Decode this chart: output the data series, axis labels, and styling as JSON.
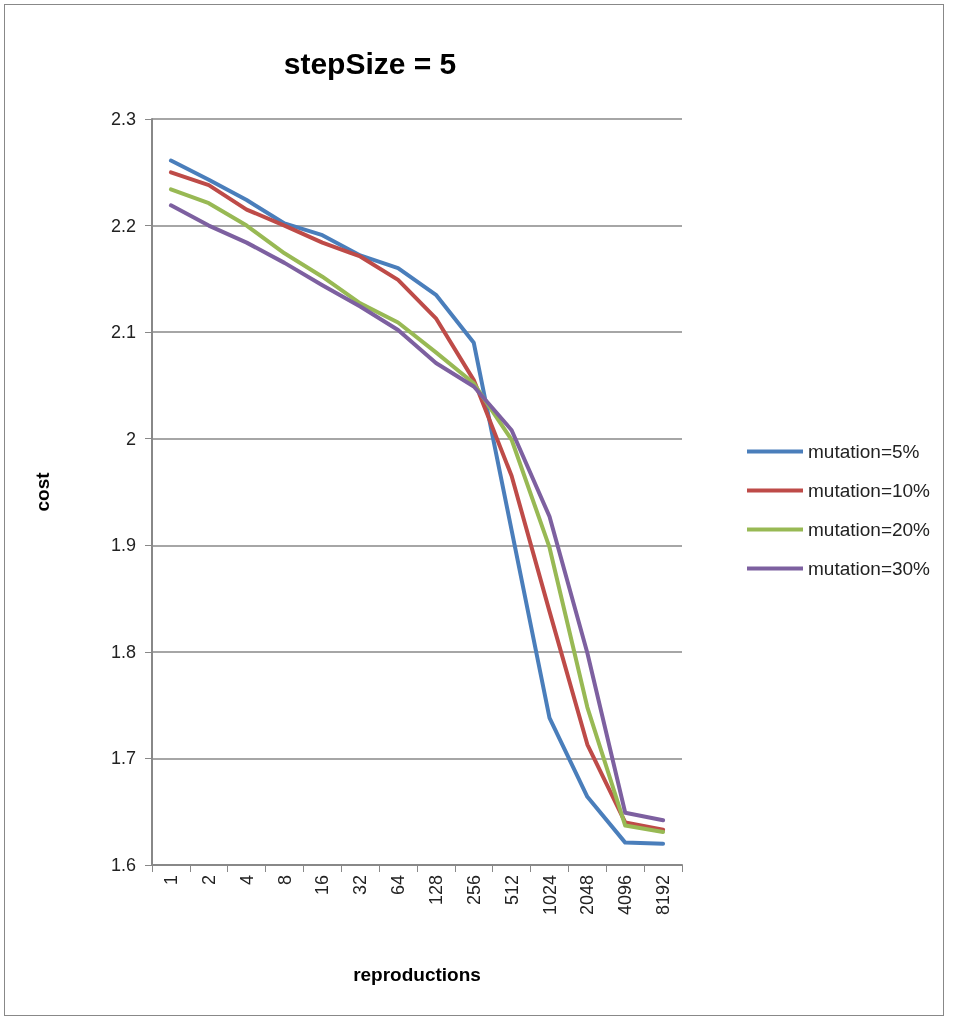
{
  "chart_data": {
    "type": "line",
    "title": "stepSize = 5",
    "xlabel": "reproductions",
    "ylabel": "cost",
    "categories": [
      "1",
      "2",
      "4",
      "8",
      "16",
      "32",
      "64",
      "128",
      "256",
      "512",
      "1024",
      "2048",
      "4096",
      "8192"
    ],
    "ylim": [
      1.6,
      2.3
    ],
    "yticks": [
      1.6,
      1.7,
      1.8,
      1.9,
      2,
      2.1,
      2.2,
      2.3
    ],
    "grid": "y",
    "legend": "right",
    "marker": "none",
    "line_style": "solid",
    "series": [
      {
        "name": "mutation=5%",
        "color": "#4a7ebb",
        "values": [
          2.261,
          2.243,
          2.224,
          2.202,
          2.191,
          2.172,
          2.16,
          2.135,
          2.09,
          1.914,
          1.738,
          1.664,
          1.621,
          1.62
        ]
      },
      {
        "name": "mutation=10%",
        "color": "#be4b48",
        "values": [
          2.25,
          2.238,
          2.215,
          2.2,
          2.184,
          2.171,
          2.149,
          2.113,
          2.055,
          1.965,
          1.838,
          1.713,
          1.64,
          1.633
        ]
      },
      {
        "name": "mutation=20%",
        "color": "#98b954",
        "values": [
          2.234,
          2.221,
          2.2,
          2.174,
          2.152,
          2.127,
          2.109,
          2.081,
          2.052,
          1.999,
          1.898,
          1.748,
          1.637,
          1.631
        ]
      },
      {
        "name": "mutation=30%",
        "color": "#7d60a0",
        "values": [
          2.219,
          2.2,
          2.184,
          2.165,
          2.144,
          2.124,
          2.102,
          2.071,
          2.049,
          2.008,
          1.927,
          1.799,
          1.649,
          1.642
        ]
      }
    ]
  }
}
